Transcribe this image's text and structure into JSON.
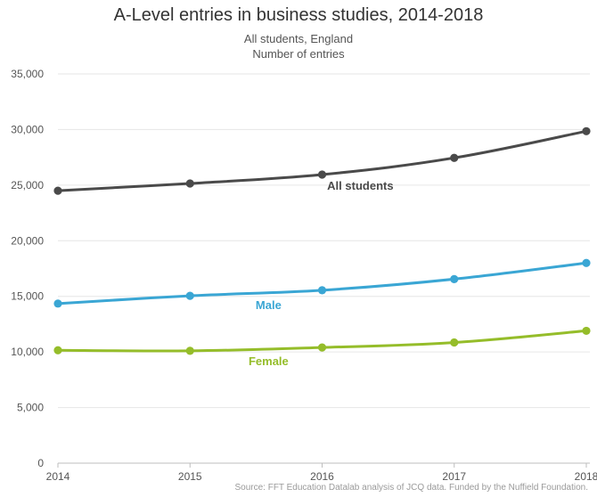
{
  "chart_data": {
    "type": "line",
    "title": "A-Level entries in business studies, 2014-2018",
    "subtitle_lines": [
      "All students, England",
      "Number of entries"
    ],
    "x": [
      "2014",
      "2015",
      "2016",
      "2017",
      "2018"
    ],
    "ylim": [
      0,
      35000
    ],
    "yticks": [
      0,
      5000,
      10000,
      15000,
      20000,
      25000,
      30000,
      35000
    ],
    "ytick_labels": [
      "0",
      "5,000",
      "10,000",
      "15,000",
      "20,000",
      "25,000",
      "30,000",
      "35,000"
    ],
    "grid": true,
    "series": [
      {
        "name": "All students",
        "color": "#4a4a4a",
        "values": [
          24500,
          25150,
          25950,
          27450,
          29850
        ]
      },
      {
        "name": "Male",
        "color": "#3aa6d4",
        "values": [
          14350,
          15050,
          15550,
          16550,
          18000
        ]
      },
      {
        "name": "Female",
        "color": "#95bd2a",
        "values": [
          10150,
          10100,
          10400,
          10850,
          11900
        ]
      }
    ],
    "source": "Source: FFT Education Datalab analysis of JCQ data. Funded by the Nuffield Foundation."
  }
}
